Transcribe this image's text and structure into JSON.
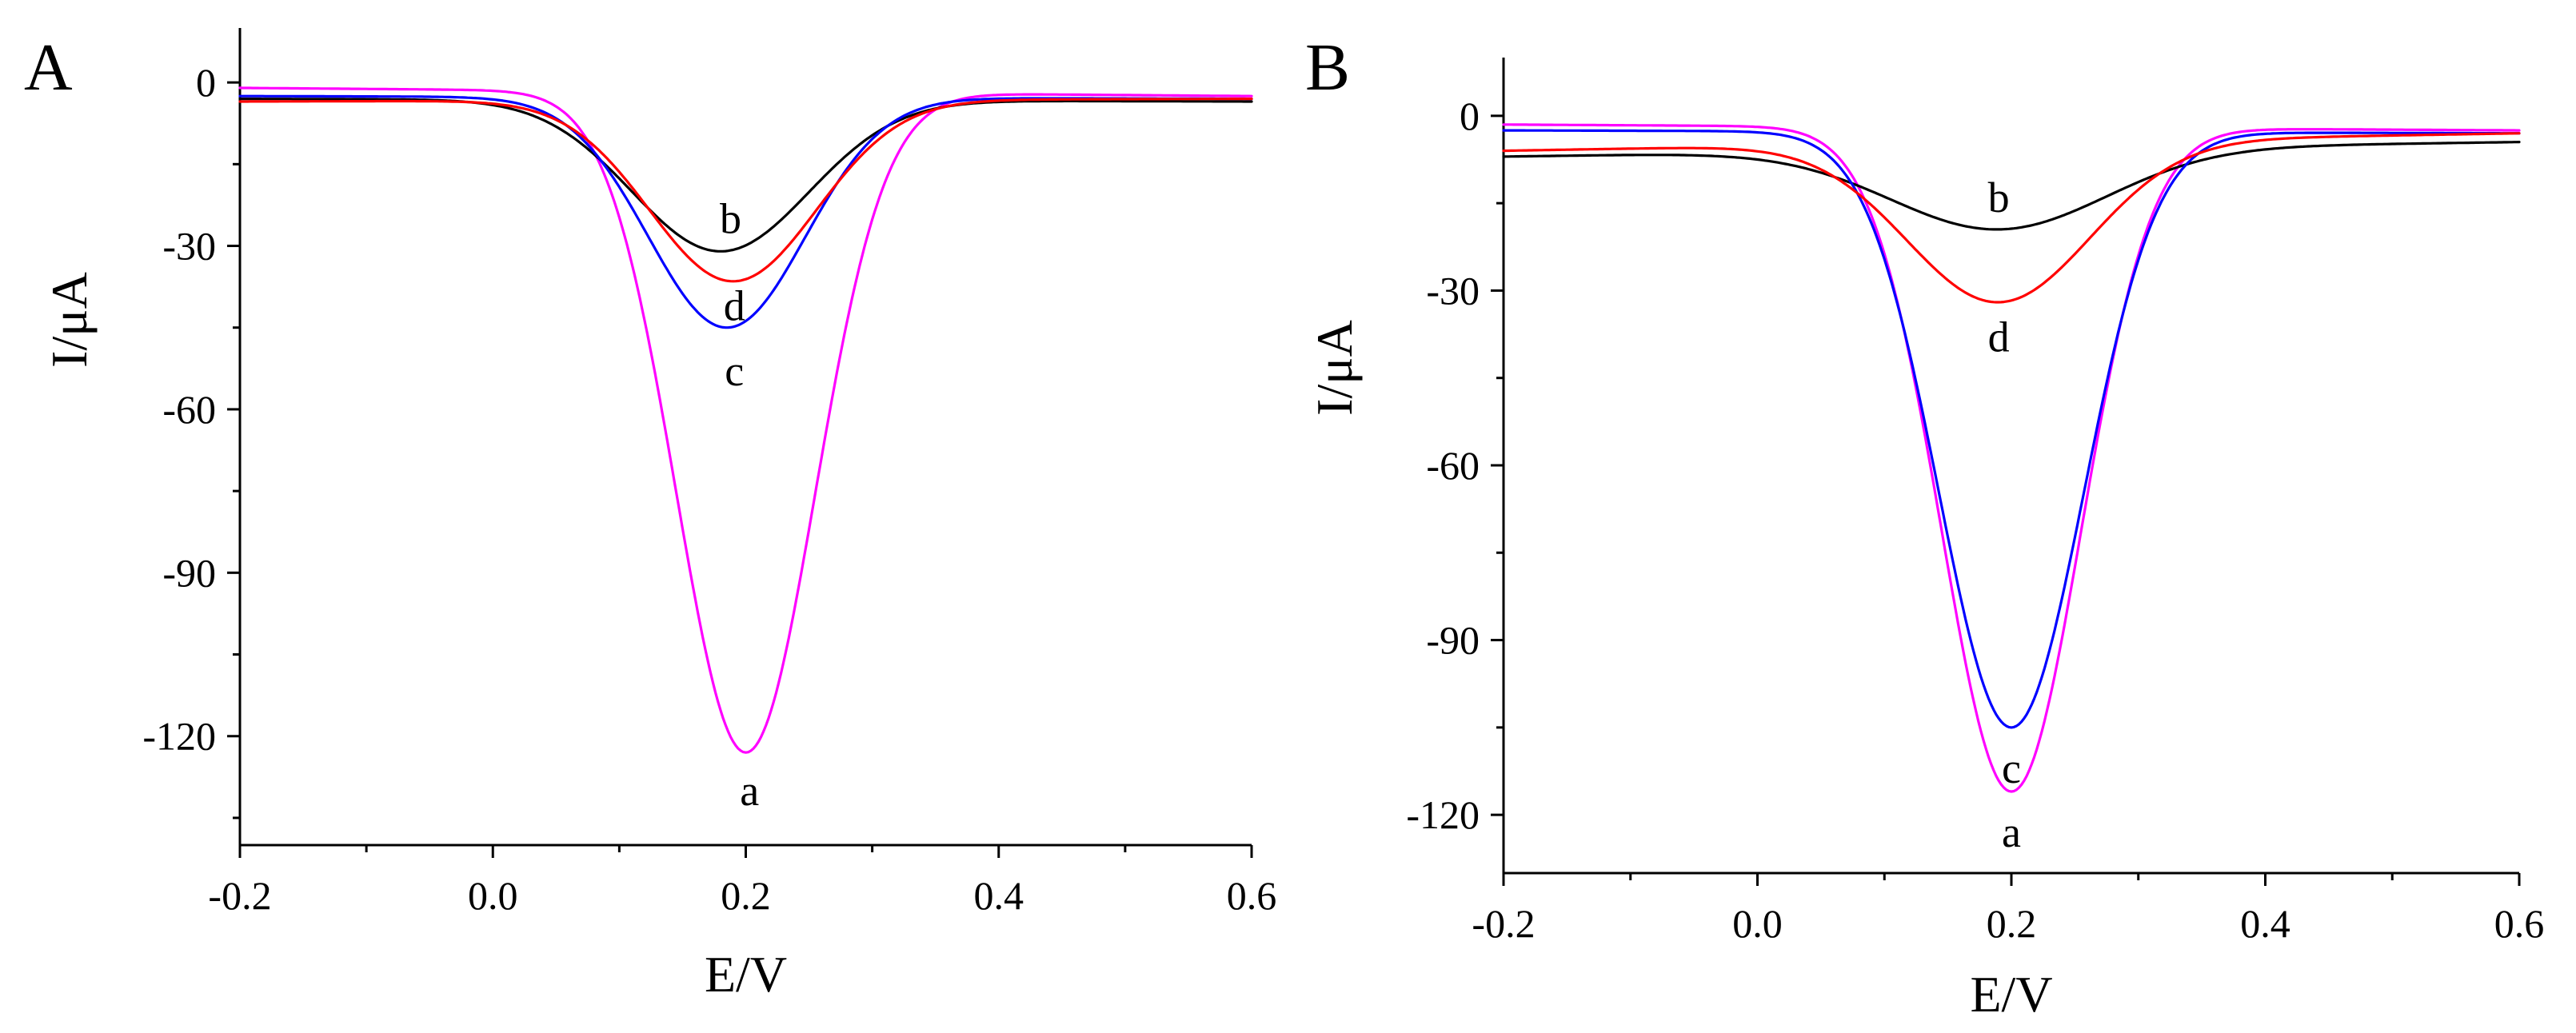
{
  "chart_data": [
    {
      "type": "line",
      "panel_label": "A",
      "xlabel": "E/V",
      "ylabel": "I/μA",
      "xlim": [
        -0.2,
        0.6
      ],
      "ylim": [
        -140,
        10
      ],
      "xticks": [
        -0.2,
        0.0,
        0.2,
        0.4,
        0.6
      ],
      "xtick_labels": [
        "-0.2",
        "0.0",
        "0.2",
        "0.4",
        "0.6"
      ],
      "yticks": [
        0,
        -30,
        -60,
        -90,
        -120
      ],
      "ytick_labels": [
        "0",
        "-30",
        "-60",
        "-90",
        "-120"
      ],
      "series": [
        {
          "name": "a",
          "color": "#ff00ff",
          "baseline_start": -1,
          "baseline_end": -2.5,
          "peak_x": 0.2,
          "peak_y": -123,
          "width": 0.055,
          "label_x": 0.203,
          "label_y": -130
        },
        {
          "name": "b",
          "color": "#000000",
          "baseline_start": -3,
          "baseline_end": -3.5,
          "peak_x": 0.18,
          "peak_y": -31,
          "width": 0.07,
          "label_x": 0.188,
          "label_y": -25
        },
        {
          "name": "c",
          "color": "#0000ff",
          "baseline_start": -2.5,
          "baseline_end": -3,
          "peak_x": 0.185,
          "peak_y": -45,
          "width": 0.062,
          "label_x": 0.191,
          "label_y": -53
        },
        {
          "name": "d",
          "color": "#ff0000",
          "baseline_start": -3.5,
          "baseline_end": -3,
          "peak_x": 0.19,
          "peak_y": -36.5,
          "width": 0.066,
          "label_x": 0.191,
          "label_y": -41
        }
      ]
    },
    {
      "type": "line",
      "panel_label": "B",
      "xlabel": "E/V",
      "ylabel": "I/μA",
      "xlim": [
        -0.2,
        0.6
      ],
      "ylim": [
        -130,
        10
      ],
      "xticks": [
        -0.2,
        0.0,
        0.2,
        0.4,
        0.6
      ],
      "xtick_labels": [
        "-0.2",
        "0.0",
        "0.2",
        "0.4",
        "0.6"
      ],
      "yticks": [
        0,
        -30,
        -60,
        -90,
        -120
      ],
      "ytick_labels": [
        "0",
        "-30",
        "-60",
        "-90",
        "-120"
      ],
      "series": [
        {
          "name": "a",
          "color": "#ff00ff",
          "baseline_start": -1.5,
          "baseline_end": -2.5,
          "peak_x": 0.2,
          "peak_y": -116,
          "width": 0.055,
          "label_x": 0.2,
          "label_y": -123
        },
        {
          "name": "b",
          "color": "#000000",
          "baseline_start": -7,
          "baseline_end": -4.5,
          "peak_x": 0.19,
          "peak_y": -19.5,
          "width": 0.085,
          "label_x": 0.19,
          "label_y": -14
        },
        {
          "name": "c",
          "color": "#0000ff",
          "baseline_start": -2.5,
          "baseline_end": -3,
          "peak_x": 0.2,
          "peak_y": -105,
          "width": 0.057,
          "label_x": 0.2,
          "label_y": -112
        },
        {
          "name": "d",
          "color": "#ff0000",
          "baseline_start": -6,
          "baseline_end": -3,
          "peak_x": 0.19,
          "peak_y": -32,
          "width": 0.072,
          "label_x": 0.19,
          "label_y": -38
        }
      ]
    }
  ]
}
